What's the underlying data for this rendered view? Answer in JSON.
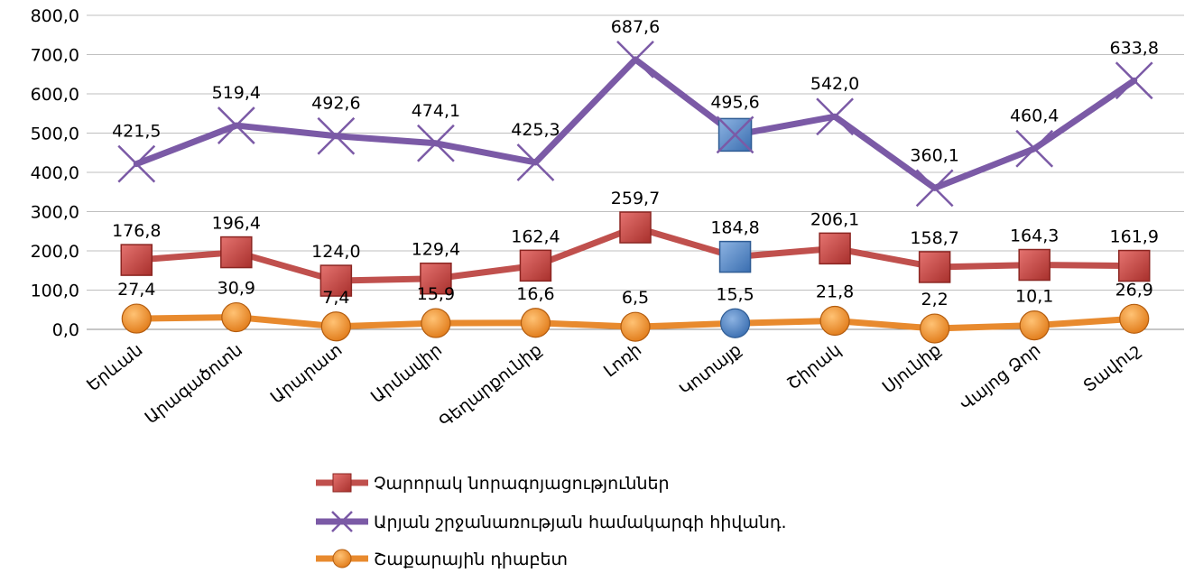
{
  "chart_data": {
    "type": "line",
    "categories": [
      "Երևան",
      "Արագածոտն",
      "Արարատ",
      "Արմավիր",
      "Գեղարքունիք",
      "Լոռի",
      "Կոտայք",
      "Շիրակ",
      "Սյունիք",
      "Վայոց Ձոր",
      "Տավուշ"
    ],
    "series": [
      {
        "name": "Չարորակ նորագոյացություններ",
        "values": [
          176.8,
          196.4,
          124.0,
          129.4,
          162.4,
          259.7,
          184.8,
          206.1,
          158.7,
          164.3,
          161.9
        ],
        "labels": [
          "176,8",
          "196,4",
          "124,0",
          "129,4",
          "162,4",
          "259,7",
          "184,8",
          "206,1",
          "158,7",
          "164,3",
          "161,9"
        ],
        "color": "#C0504D",
        "marker": "square"
      },
      {
        "name": "Արյան շրջանառության համակարգի հիվանդ.",
        "values": [
          421.5,
          519.4,
          492.6,
          474.1,
          425.3,
          687.6,
          495.6,
          542.0,
          360.1,
          460.4,
          633.8
        ],
        "labels": [
          "421,5",
          "519,4",
          "492,6",
          "474,1",
          "425,3",
          "687,6",
          "495,6",
          "542,0",
          "360,1",
          "460,4",
          "633,8"
        ],
        "color": "#7B5AA6",
        "marker": "x"
      },
      {
        "name": "Շաքարային դիաբետ",
        "values": [
          27.4,
          30.9,
          7.4,
          15.9,
          16.6,
          6.5,
          15.5,
          21.8,
          2.2,
          10.1,
          26.9
        ],
        "labels": [
          "27,4",
          "30,9",
          "7,4",
          "15,9",
          "16,6",
          "6,5",
          "15,5",
          "21,8",
          "2,2",
          "10,1",
          "26,9"
        ],
        "color": "#E88A2E",
        "marker": "circle"
      }
    ],
    "highlight_index": 6,
    "highlight_color": "#4F81BD",
    "ylim": [
      0,
      800
    ],
    "yticks": [
      0,
      100,
      200,
      300,
      400,
      500,
      600,
      700,
      800
    ],
    "ytick_labels": [
      "0,0",
      "100,0",
      "200,0",
      "300,0",
      "400,0",
      "500,0",
      "600,0",
      "700,0",
      "800,0"
    ],
    "grid": true,
    "legend": "bottom"
  }
}
